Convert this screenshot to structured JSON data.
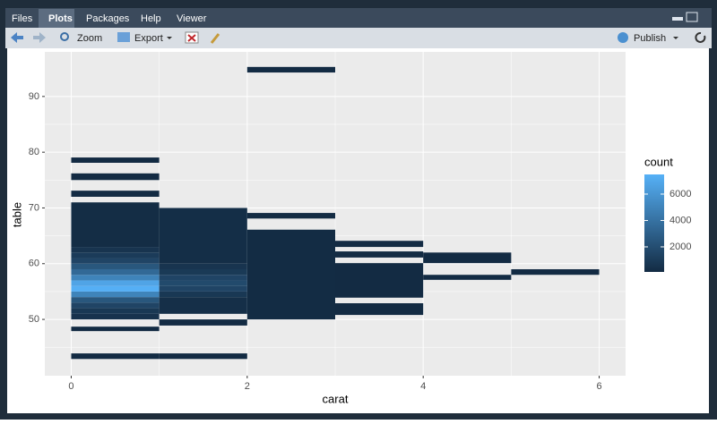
{
  "ui": {
    "tabs": [
      "Files",
      "Plots",
      "Packages",
      "Help",
      "Viewer"
    ],
    "active_tab": 1,
    "toolbar": {
      "zoom": "Zoom",
      "export": "Export",
      "publish": "Publish"
    }
  },
  "chart_data": {
    "type": "heatmap",
    "xlabel": "carat",
    "ylabel": "table",
    "xlim": [
      -0.3,
      6.3
    ],
    "ylim": [
      39.9,
      98
    ],
    "xticks": [
      0,
      2,
      4,
      6
    ],
    "yticks": [
      50,
      60,
      70,
      80,
      90
    ],
    "grid": true,
    "legend_title": "count",
    "color_low": "#132B43",
    "color_high": "#56B1F7",
    "colorlim": [
      100,
      7490
    ],
    "colorticks": [
      2000,
      4000,
      6000
    ],
    "tiles": [
      {
        "x": [
          0,
          1
        ],
        "y": [
          42.9,
          43.9
        ],
        "count": 30
      },
      {
        "x": [
          0,
          1
        ],
        "y": [
          47.9,
          48.7
        ],
        "count": 60
      },
      {
        "x": [
          0,
          1
        ],
        "y": [
          50,
          51
        ],
        "count": 500
      },
      {
        "x": [
          0,
          1
        ],
        "y": [
          51,
          52
        ],
        "count": 800
      },
      {
        "x": [
          0,
          1
        ],
        "y": [
          52,
          53
        ],
        "count": 1500
      },
      {
        "x": [
          0,
          1
        ],
        "y": [
          53,
          54
        ],
        "count": 2500
      },
      {
        "x": [
          0,
          1
        ],
        "y": [
          54,
          55
        ],
        "count": 5000
      },
      {
        "x": [
          0,
          1
        ],
        "y": [
          55,
          56
        ],
        "count": 7400
      },
      {
        "x": [
          0,
          1
        ],
        "y": [
          56,
          57
        ],
        "count": 6800
      },
      {
        "x": [
          0,
          1
        ],
        "y": [
          57,
          58
        ],
        "count": 5000
      },
      {
        "x": [
          0,
          1
        ],
        "y": [
          58,
          59
        ],
        "count": 3500
      },
      {
        "x": [
          0,
          1
        ],
        "y": [
          59,
          60
        ],
        "count": 2500
      },
      {
        "x": [
          0,
          1
        ],
        "y": [
          60,
          61
        ],
        "count": 1500
      },
      {
        "x": [
          0,
          1
        ],
        "y": [
          61,
          62
        ],
        "count": 1000
      },
      {
        "x": [
          0,
          1
        ],
        "y": [
          62,
          63
        ],
        "count": 600
      },
      {
        "x": [
          0,
          1
        ],
        "y": [
          63,
          71
        ],
        "count": 200
      },
      {
        "x": [
          0,
          1
        ],
        "y": [
          72,
          73.1
        ],
        "count": 20
      },
      {
        "x": [
          0,
          1
        ],
        "y": [
          75,
          76.2
        ],
        "count": 15
      },
      {
        "x": [
          0,
          1
        ],
        "y": [
          78.1,
          79.05
        ],
        "count": 10
      },
      {
        "x": [
          1,
          2
        ],
        "y": [
          42.9,
          43.9
        ],
        "count": 10
      },
      {
        "x": [
          1,
          2
        ],
        "y": [
          48.9,
          50
        ],
        "count": 40
      },
      {
        "x": [
          1,
          2
        ],
        "y": [
          51,
          54
        ],
        "count": 300
      },
      {
        "x": [
          1,
          2
        ],
        "y": [
          54,
          55
        ],
        "count": 800
      },
      {
        "x": [
          1,
          2
        ],
        "y": [
          55,
          56
        ],
        "count": 1500
      },
      {
        "x": [
          1,
          2
        ],
        "y": [
          56,
          57
        ],
        "count": 1800
      },
      {
        "x": [
          1,
          2
        ],
        "y": [
          57,
          58
        ],
        "count": 1500
      },
      {
        "x": [
          1,
          2
        ],
        "y": [
          58,
          59
        ],
        "count": 900
      },
      {
        "x": [
          1,
          2
        ],
        "y": [
          59,
          60
        ],
        "count": 600
      },
      {
        "x": [
          1,
          2
        ],
        "y": [
          60,
          70
        ],
        "count": 250
      },
      {
        "x": [
          2,
          3
        ],
        "y": [
          94.3,
          95.3
        ],
        "count": 5
      },
      {
        "x": [
          2,
          3
        ],
        "y": [
          68.1,
          69.1
        ],
        "count": 10
      },
      {
        "x": [
          2,
          3
        ],
        "y": [
          50,
          66.1
        ],
        "count": 150
      },
      {
        "x": [
          3,
          4
        ],
        "y": [
          63,
          64.1
        ],
        "count": 3
      },
      {
        "x": [
          3,
          4
        ],
        "y": [
          61.1,
          62.2
        ],
        "count": 5
      },
      {
        "x": [
          3,
          4
        ],
        "y": [
          53.9,
          60.1
        ],
        "count": 30
      },
      {
        "x": [
          3,
          4
        ],
        "y": [
          50.8,
          52.9
        ],
        "count": 10
      },
      {
        "x": [
          4,
          5
        ],
        "y": [
          60.1,
          62
        ],
        "count": 3
      },
      {
        "x": [
          4,
          5
        ],
        "y": [
          57.1,
          58
        ],
        "count": 2
      },
      {
        "x": [
          5,
          6
        ],
        "y": [
          58,
          59
        ],
        "count": 1
      }
    ]
  }
}
